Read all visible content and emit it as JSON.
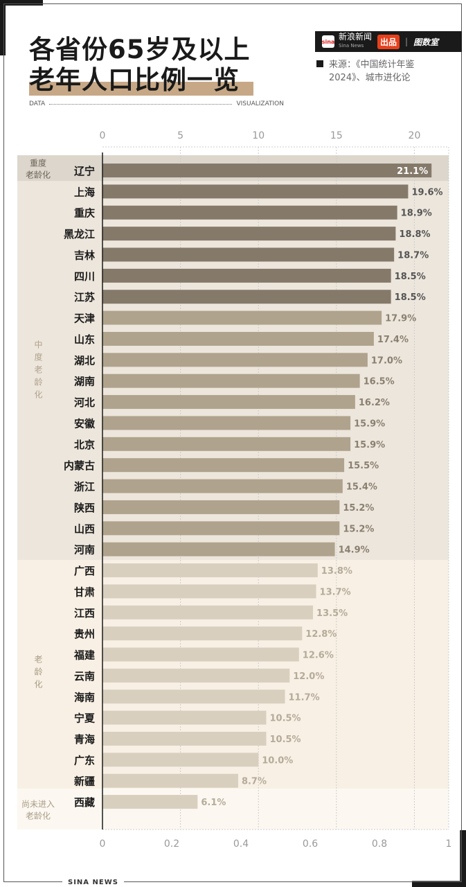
{
  "header": {
    "title_line1": "各省份65岁及以上",
    "title_line2": "老年人口比例一览",
    "data_label": "DATA",
    "viz_label": "VISUALIZATION",
    "brand": {
      "logo_text": "sina",
      "name": "新浪新闻",
      "name_en": "Sina News",
      "produced": "出品",
      "partner": "图数室"
    },
    "source_line1": "来源：《中国统计年鉴",
    "source_line2": "2024》、城市进化论"
  },
  "footer": {
    "label": "SINA NEWS"
  },
  "colors": {
    "heavy_bar": "#857a6a",
    "moderate_bar": "#b0a38d",
    "aging_bar": "#d8cfbf",
    "not_aging_bar": "#d8cfbf",
    "heavy_bg": "#dcd6cc",
    "moderate_bg": "#ede6dc",
    "aging_bg": "#f8f0e4",
    "not_aging_bg": "#fcf8f1"
  },
  "chart_data": {
    "type": "bar",
    "orientation": "horizontal",
    "unit": "%",
    "top_axis": {
      "ticks": [
        "0",
        "5",
        "10",
        "15",
        "20"
      ],
      "range": [
        0,
        22.2
      ]
    },
    "bottom_axis": {
      "ticks": [
        "0",
        "0.2",
        "0.4",
        "0.6",
        "0.8",
        "1"
      ],
      "range": [
        0,
        1
      ]
    },
    "grid": true,
    "groups": [
      {
        "label_line1": "重度",
        "label_line2": "老龄化",
        "key": "heavy",
        "count": 1
      },
      {
        "label_line1": "中度老龄化",
        "label_line2": "",
        "key": "moderate",
        "count": 18
      },
      {
        "label_line1": "老龄化",
        "label_line2": "",
        "key": "aging",
        "count": 11
      },
      {
        "label_line1": "尚未进入",
        "label_line2": "老龄化",
        "key": "not_aging",
        "count": 1
      }
    ],
    "categories": [
      "辽宁",
      "上海",
      "重庆",
      "黑龙江",
      "吉林",
      "四川",
      "江苏",
      "天津",
      "山东",
      "湖北",
      "湖南",
      "河北",
      "安徽",
      "北京",
      "内蒙古",
      "浙江",
      "陕西",
      "山西",
      "河南",
      "广西",
      "甘肃",
      "江西",
      "贵州",
      "福建",
      "云南",
      "海南",
      "宁夏",
      "青海",
      "广东",
      "新疆",
      "西藏"
    ],
    "values": [
      21.1,
      19.6,
      18.9,
      18.8,
      18.7,
      18.5,
      18.5,
      17.9,
      17.4,
      17.0,
      16.5,
      16.2,
      15.9,
      15.9,
      15.5,
      15.4,
      15.2,
      15.2,
      14.9,
      13.8,
      13.7,
      13.5,
      12.8,
      12.6,
      12.0,
      11.7,
      10.5,
      10.5,
      10.0,
      8.7,
      6.1
    ],
    "labels": [
      "21.1%",
      "19.6%",
      "18.9%",
      "18.8%",
      "18.7%",
      "18.5%",
      "18.5%",
      "17.9%",
      "17.4%",
      "17.0%",
      "16.5%",
      "16.2%",
      "15.9%",
      "15.9%",
      "15.5%",
      "15.4%",
      "15.2%",
      "15.2%",
      "14.9%",
      "13.8%",
      "13.7%",
      "13.5%",
      "12.8%",
      "12.6%",
      "12.0%",
      "11.7%",
      "10.5%",
      "10.5%",
      "10.0%",
      "8.7%",
      "6.1%"
    ]
  }
}
